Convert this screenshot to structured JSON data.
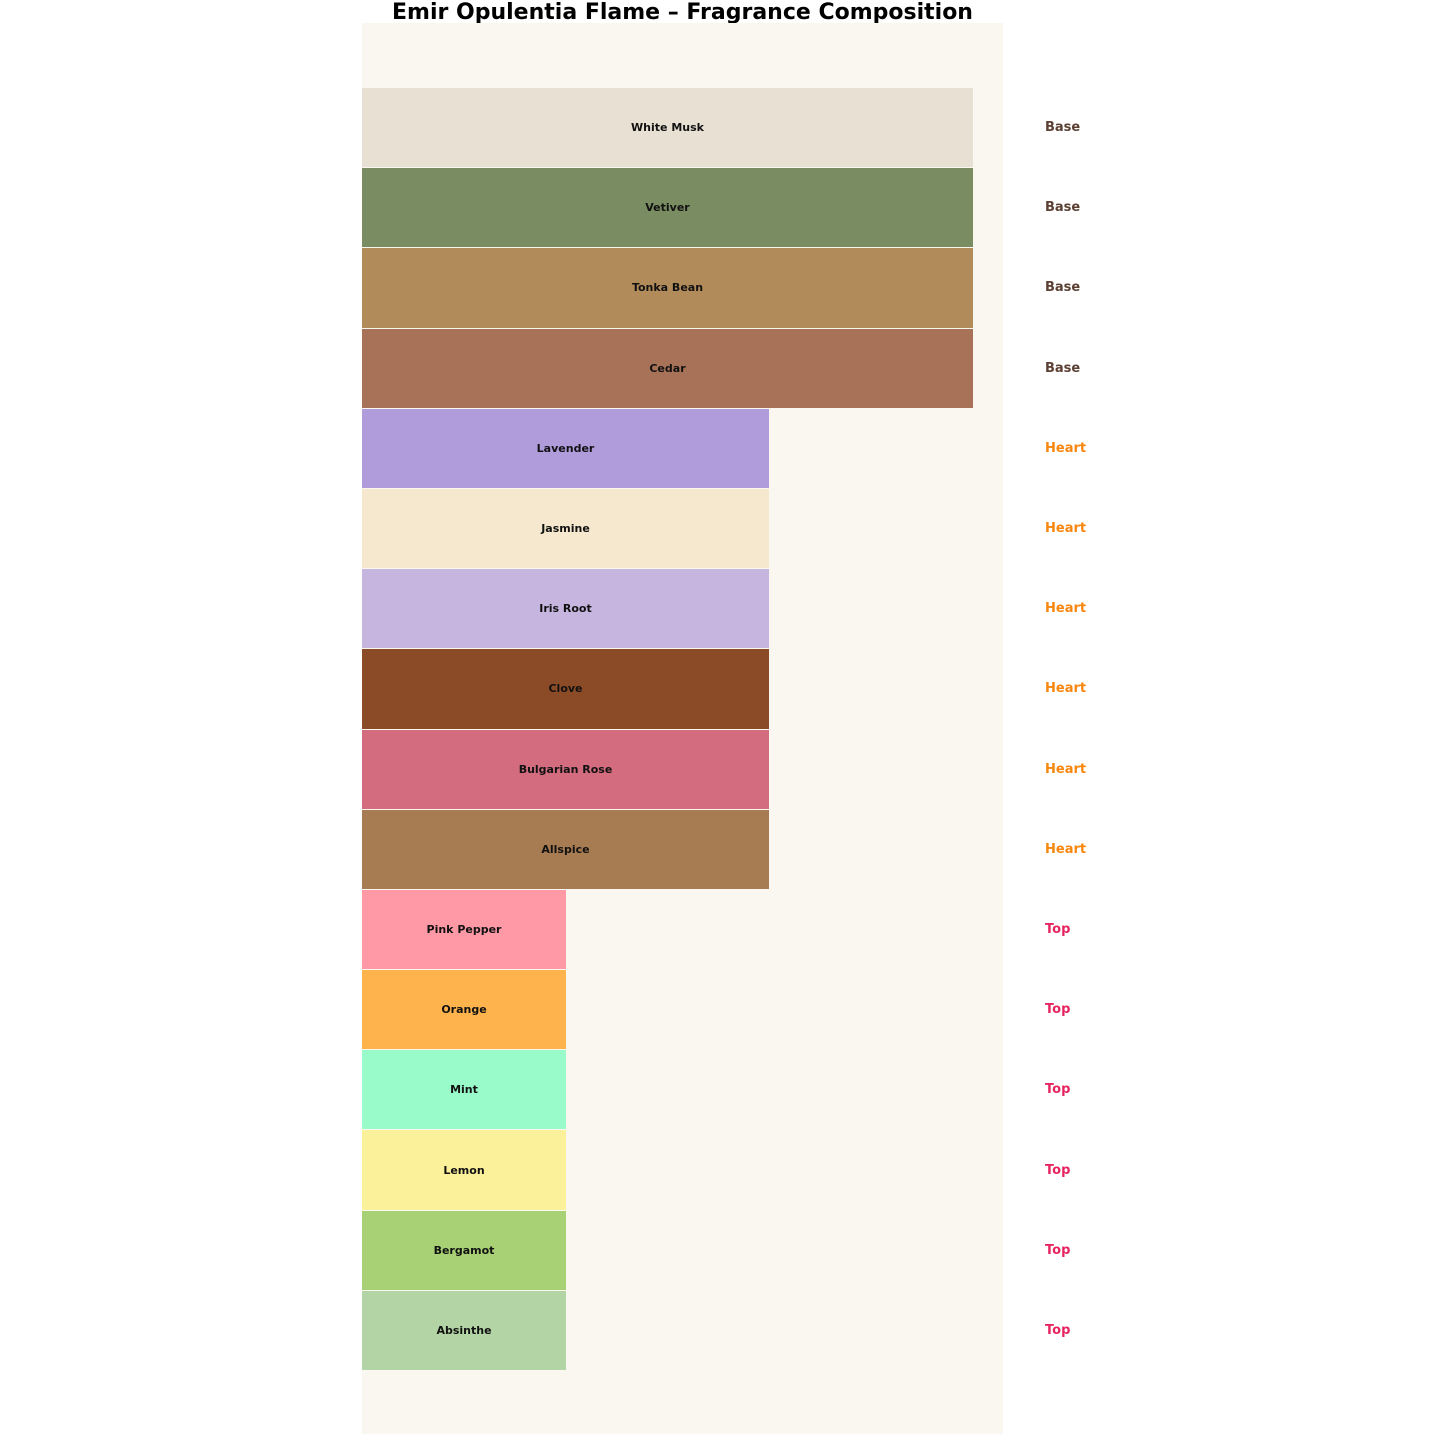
{
  "title": "Emir Opulentia Flame – Fragrance Composition",
  "chart_data": {
    "type": "bar",
    "orientation": "horizontal",
    "title": "Emir Opulentia Flame – Fragrance Composition",
    "xlabel": "",
    "ylabel": "",
    "axes_visible": false,
    "grid": false,
    "plot_background": "#FAF6F0",
    "page_background": "#FFFFFF",
    "value_scale_note": "relative note strength: Base=3, Heart=2, Top=1",
    "xlim": [
      0,
      3.15
    ],
    "group_label_colors": {
      "Base": "#5C4033",
      "Heart": "#F8860D",
      "Top": "#E62560"
    },
    "bars": [
      {
        "label": "White Musk",
        "group": "Base",
        "value": 3,
        "color": "#E7E0D3"
      },
      {
        "label": "Vetiver",
        "group": "Base",
        "value": 3,
        "color": "#7A8C61"
      },
      {
        "label": "Tonka Bean",
        "group": "Base",
        "value": 3,
        "color": "#B28B5B"
      },
      {
        "label": "Cedar",
        "group": "Base",
        "value": 3,
        "color": "#A77258"
      },
      {
        "label": "Lavender",
        "group": "Heart",
        "value": 2,
        "color": "#B09BDB"
      },
      {
        "label": "Jasmine",
        "group": "Heart",
        "value": 2,
        "color": "#F5E8CE"
      },
      {
        "label": "Iris Root",
        "group": "Heart",
        "value": 2,
        "color": "#C6B6DF"
      },
      {
        "label": "Clove",
        "group": "Heart",
        "value": 2,
        "color": "#8B4B26"
      },
      {
        "label": "Bulgarian Rose",
        "group": "Heart",
        "value": 2,
        "color": "#D26C7E"
      },
      {
        "label": "Allspice",
        "group": "Heart",
        "value": 2,
        "color": "#A87C52"
      },
      {
        "label": "Pink Pepper",
        "group": "Top",
        "value": 1,
        "color": "#FF99A5"
      },
      {
        "label": "Orange",
        "group": "Top",
        "value": 1,
        "color": "#FFB34C"
      },
      {
        "label": "Mint",
        "group": "Top",
        "value": 1,
        "color": "#99FBCA"
      },
      {
        "label": "Lemon",
        "group": "Top",
        "value": 1,
        "color": "#FBF19B"
      },
      {
        "label": "Bergamot",
        "group": "Top",
        "value": 1,
        "color": "#A8D175"
      },
      {
        "label": "Absinthe",
        "group": "Top",
        "value": 1,
        "color": "#B3D5A5"
      }
    ]
  }
}
